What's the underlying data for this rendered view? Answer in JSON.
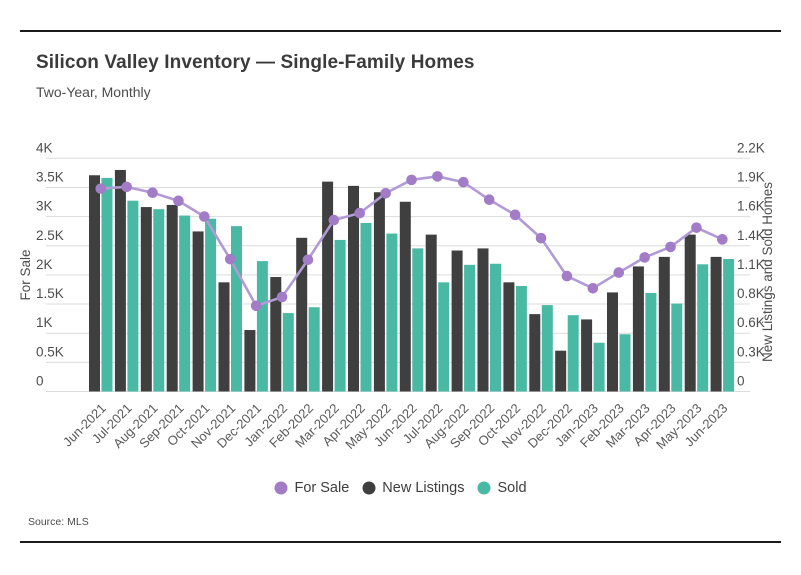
{
  "page": {
    "title": "Silicon Valley Inventory — Single-Family Homes",
    "subtitle": "Two-Year, Monthly",
    "source": "Source: MLS"
  },
  "colors": {
    "for_sale_marker": "#a27cc7",
    "for_sale_line": "#b29ad6",
    "new_listings": "#3f3f3f",
    "sold": "#4ab9a4",
    "grid": "#dcdcdc",
    "rule": "#1b1b1b",
    "title_text": "#3b3b3b",
    "body_text": "#4c4c4c"
  },
  "chart_data": {
    "type": "combo_bar_line",
    "title": "Silicon Valley Inventory — Single-Family Homes",
    "subtitle": "Two-Year, Monthly",
    "grid": "horizontal",
    "legend_position": "bottom-center",
    "categories": [
      "Jun-2021",
      "Jul-2021",
      "Aug-2021",
      "Sep-2021",
      "Oct-2021",
      "Nov-2021",
      "Dec-2021",
      "Jan-2022",
      "Feb-2022",
      "Mar-2022",
      "Apr-2022",
      "May-2022",
      "Jun-2022",
      "Jul-2022",
      "Aug-2022",
      "Sep-2022",
      "Oct-2022",
      "Nov-2022",
      "Dec-2022",
      "Jan-2023",
      "Feb-2023",
      "Mar-2023",
      "Apr-2023",
      "May-2023",
      "Jun-2023"
    ],
    "series": [
      {
        "name": "For Sale",
        "type": "line",
        "axis": "left",
        "color": "#a27cc7",
        "values": [
          3480,
          3510,
          3410,
          3270,
          3000,
          2270,
          1470,
          1620,
          2260,
          2940,
          3060,
          3400,
          3630,
          3690,
          3590,
          3290,
          3030,
          2630,
          1980,
          1770,
          2040,
          2300,
          2480,
          2810,
          2610
        ]
      },
      {
        "name": "New Listings",
        "type": "bar",
        "axis": "right",
        "color": "#3f3f3f",
        "values": [
          2040,
          2090,
          1740,
          1760,
          1510,
          1030,
          580,
          1080,
          1450,
          1980,
          1940,
          1880,
          1790,
          1480,
          1330,
          1350,
          1030,
          730,
          385,
          680,
          935,
          1180,
          1270,
          1480,
          1270
        ]
      },
      {
        "name": "Sold",
        "type": "bar",
        "axis": "right",
        "color": "#4ab9a4",
        "values": [
          2015,
          1800,
          1720,
          1660,
          1630,
          1560,
          1230,
          740,
          795,
          1430,
          1590,
          1490,
          1350,
          1030,
          1195,
          1205,
          995,
          815,
          720,
          460,
          540,
          930,
          830,
          1200,
          1250
        ]
      }
    ],
    "left_axis": {
      "label": "For Sale",
      "min": 0,
      "max": 4000,
      "tick_labels": [
        "0",
        "0.5K",
        "1K",
        "1.5K",
        "2K",
        "2.5K",
        "3K",
        "3.5K",
        "4K"
      ]
    },
    "right_axis": {
      "label": "New Listings and Sold Homes",
      "min": 0,
      "max": 2200,
      "tick_labels": [
        "0",
        "0.3K",
        "0.6K",
        "0.8K",
        "1.1K",
        "1.4K",
        "1.6K",
        "1.9K",
        "2.2K"
      ]
    },
    "legend": [
      {
        "label": "For Sale",
        "color": "#a27cc7"
      },
      {
        "label": "New Listings",
        "color": "#3f3f3f"
      },
      {
        "label": "Sold",
        "color": "#4ab9a4"
      }
    ]
  }
}
